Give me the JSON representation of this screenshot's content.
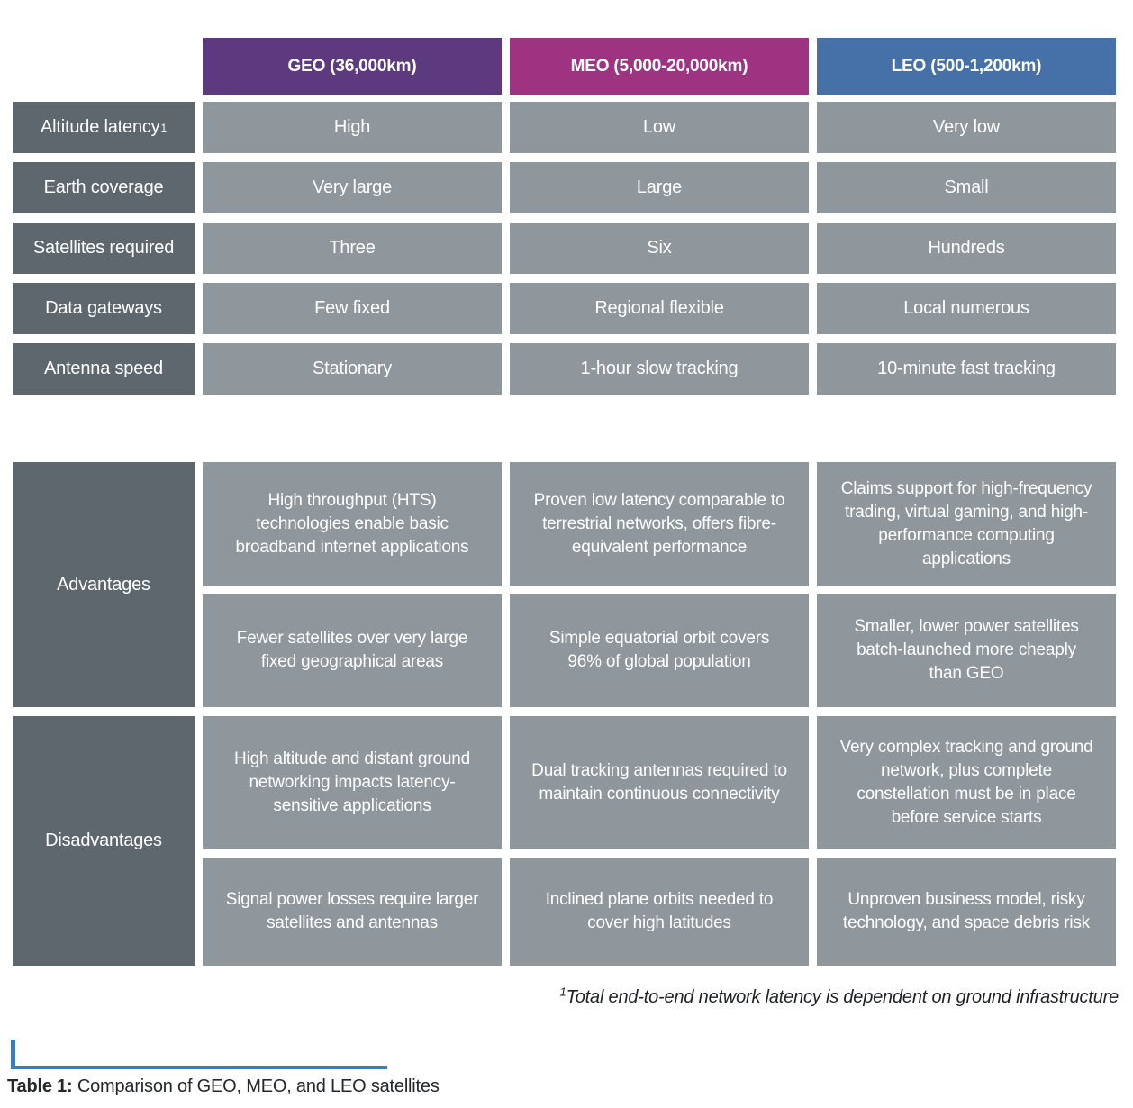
{
  "table": {
    "columns": [
      {
        "id": "geo",
        "label": "GEO (36,000km)",
        "color": "#5D3A80"
      },
      {
        "id": "meo",
        "label": "MEO (5,000-20,000km)",
        "color": "#9E3381"
      },
      {
        "id": "leo",
        "label": "LEO (500-1,200km)",
        "color": "#4571A8"
      }
    ],
    "row_label_color": "#5E676E",
    "cell_color": "#8F969C",
    "spec_rows": [
      {
        "label": "Altitude latency",
        "sup": "1",
        "values": [
          "High",
          "Low",
          "Very low"
        ]
      },
      {
        "label": "Earth coverage",
        "sup": "",
        "values": [
          "Very large",
          "Large",
          "Small"
        ]
      },
      {
        "label": "Satellites required",
        "sup": "",
        "values": [
          "Three",
          "Six",
          "Hundreds"
        ]
      },
      {
        "label": "Data gateways",
        "sup": "",
        "values": [
          "Few fixed",
          "Regional flexible",
          "Local numerous"
        ]
      },
      {
        "label": "Antenna speed",
        "sup": "",
        "values": [
          "Stationary",
          "1-hour slow tracking",
          "10-minute fast tracking"
        ]
      }
    ],
    "groups": [
      {
        "label": "Advantages",
        "rows": [
          [
            "High throughput (HTS) technologies enable basic broadband internet applications",
            "Proven low latency comparable to terrestrial networks, offers fibre-equivalent performance",
            "Claims support for high-frequency trading, virtual gaming, and high-performance computing applications"
          ],
          [
            "Fewer satellites over very large fixed geographical areas",
            "Simple equatorial orbit covers 96% of global population",
            "Smaller, lower power satellites batch-launched more cheaply than GEO"
          ]
        ]
      },
      {
        "label": "Disadvantages",
        "rows": [
          [
            "High altitude and distant ground networking impacts latency-sensitive applications",
            "Dual tracking antennas required to maintain continuous connectivity",
            "Very complex tracking and ground network, plus complete constellation must be in place before service starts"
          ],
          [
            "Signal power losses require larger satellites and antennas",
            "Inclined plane orbits needed to cover high latitudes",
            "Unproven business model, risky technology, and space debris risk"
          ]
        ]
      }
    ]
  },
  "footnote": {
    "superscript": "1",
    "text": "Total end-to-end network latency is dependent on ground infrastructure"
  },
  "caption": {
    "prefix": "Table 1:",
    "text": "Comparison of GEO, MEO, and LEO satellites",
    "rule_color": "#3D7CB8"
  }
}
